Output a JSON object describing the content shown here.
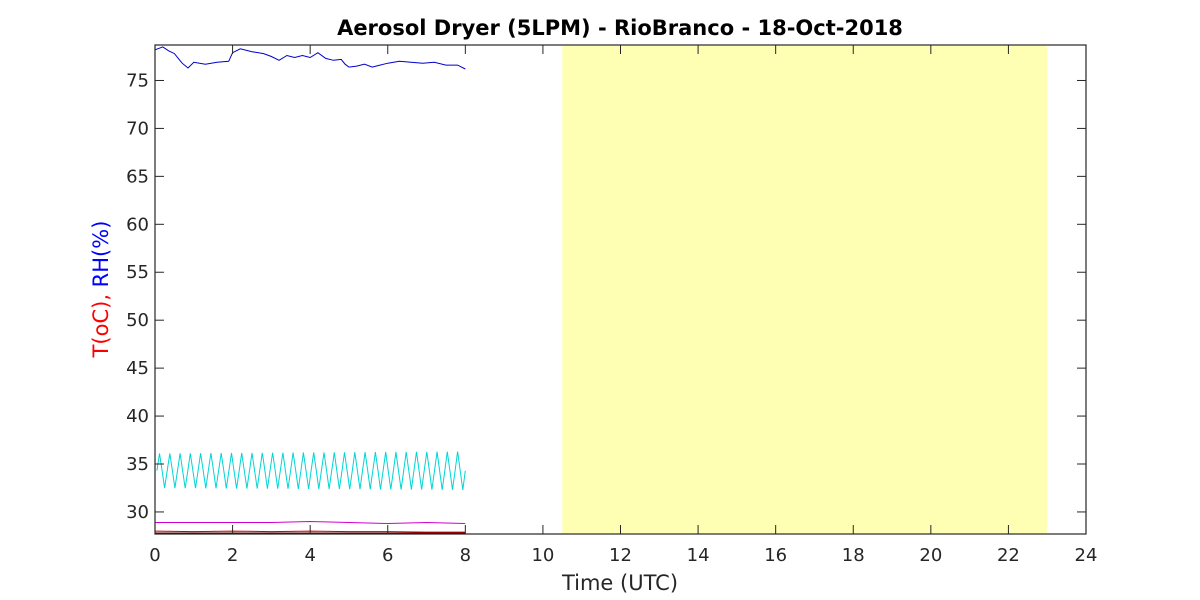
{
  "chart_data": {
    "type": "line",
    "title": "Aerosol Dryer (5LPM) - RioBranco - 18-Oct-2018",
    "xlabel": "Time (UTC)",
    "ylabel_parts": [
      {
        "text": "T(oC),",
        "color": "#ff0000"
      },
      {
        "text": "RH(%)",
        "color": "#0000ff"
      }
    ],
    "xlim": [
      0,
      24
    ],
    "ylim": [
      27.7,
      78.7
    ],
    "xticks": [
      0,
      2,
      4,
      6,
      8,
      10,
      12,
      14,
      16,
      18,
      20,
      22,
      24
    ],
    "yticks": [
      30,
      35,
      40,
      45,
      50,
      55,
      60,
      65,
      70,
      75
    ],
    "grid": false,
    "shaded_region": {
      "x": [
        10.5,
        23.0
      ],
      "color": "#ffffb4"
    },
    "series": [
      {
        "color": "#0000cc",
        "x": [
          0,
          0.2,
          0.35,
          0.5,
          0.6,
          0.7,
          0.85,
          1.0,
          1.3,
          1.6,
          1.9,
          2.0,
          2.2,
          2.5,
          2.8,
          3.0,
          3.2,
          3.4,
          3.6,
          3.8,
          4.0,
          4.2,
          4.4,
          4.6,
          4.8,
          4.9,
          5.0,
          5.2,
          5.4,
          5.6,
          5.8,
          6.0,
          6.3,
          6.6,
          6.9,
          7.2,
          7.5,
          7.8,
          8.0
        ],
        "y": [
          78.2,
          78.5,
          78.1,
          77.8,
          77.3,
          76.8,
          76.3,
          76.9,
          76.7,
          76.9,
          77.0,
          77.9,
          78.3,
          78.0,
          77.8,
          77.5,
          77.1,
          77.6,
          77.4,
          77.6,
          77.4,
          77.9,
          77.3,
          77.1,
          77.2,
          76.7,
          76.4,
          76.5,
          76.7,
          76.4,
          76.6,
          76.8,
          77.0,
          76.9,
          76.8,
          76.9,
          76.6,
          76.6,
          76.2
        ]
      },
      {
        "color": "#00d5d5",
        "style": "oscillation",
        "x_start": 0.05,
        "x_end": 8.0,
        "cycles": 30,
        "center": 34.3,
        "amplitude_start": 1.8,
        "amplitude_end": 2.0
      },
      {
        "color": "#d000d0",
        "x": [
          0,
          1,
          2,
          3,
          4,
          5,
          6,
          7,
          8
        ],
        "y": [
          28.9,
          28.9,
          28.9,
          28.9,
          29.0,
          28.9,
          28.8,
          28.9,
          28.8
        ]
      },
      {
        "color": "#cc0000",
        "x": [
          0,
          1,
          2,
          3,
          4,
          5,
          6,
          7,
          8
        ],
        "y": [
          28.0,
          27.95,
          28.0,
          27.95,
          28.0,
          27.95,
          27.95,
          27.9,
          27.9
        ]
      },
      {
        "color": "#600000",
        "x": [
          0,
          1,
          2,
          3,
          4,
          5,
          6,
          7,
          8
        ],
        "y": [
          27.8,
          27.8,
          27.8,
          27.8,
          27.8,
          27.8,
          27.8,
          27.8,
          27.8
        ]
      }
    ]
  }
}
